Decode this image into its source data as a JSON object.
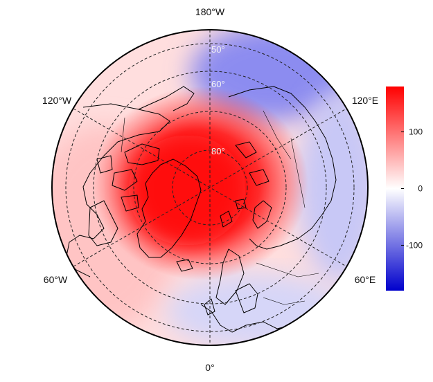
{
  "map": {
    "projection": "north-polar-stereographic",
    "lon_labels": {
      "top": "180°W",
      "upper_left": "120°W",
      "upper_right": "120°E",
      "lower_left": "60°W",
      "lower_right": "60°E",
      "bottom": "0°"
    },
    "lat_labels": [
      "50°",
      "60°",
      "80°"
    ],
    "colors": {
      "positive": "#ff0000",
      "neutral": "#ffffff",
      "negative": "#0000cc",
      "graticule": "#222222",
      "coastline": "#000000"
    },
    "field_description_values": {
      "pole_anomaly": 180,
      "pacific_anomaly": -90,
      "eurasia_anomaly": -30,
      "atlantic_anomaly": 40
    }
  },
  "colorbar": {
    "min": -180,
    "max": 180,
    "ticks": [
      {
        "value": 100,
        "label": "100"
      },
      {
        "value": 0,
        "label": "0"
      },
      {
        "value": -100,
        "label": "-100"
      }
    ]
  }
}
